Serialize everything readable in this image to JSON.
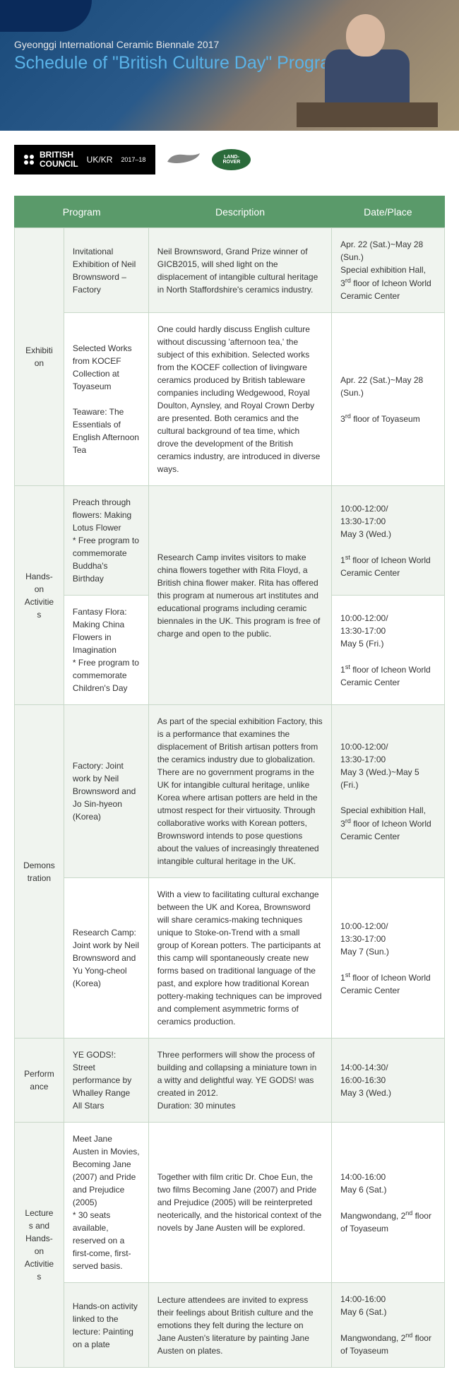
{
  "hero": {
    "subtitle": "Gyeonggi International Ceramic Biennale 2017",
    "title": "Schedule of \"British Culture Day\" Programs"
  },
  "logos": {
    "british_council": "BRITISH COUNCIL",
    "ukkr": "UK/KR",
    "year": "2017–18",
    "jaguar": "JAGUAR",
    "landrover": "LAND-ROVER"
  },
  "table": {
    "headers": {
      "program": "Program",
      "description": "Description",
      "date": "Date/Place"
    },
    "colors": {
      "header_bg": "#5a9a6a",
      "header_fg": "#ffffff",
      "border": "#c8d8c8",
      "stripe": "#f0f4ef"
    },
    "categories": [
      {
        "name": "Exhibition",
        "rows": [
          {
            "program": "Invitational Exhibition of Neil Brownsword – Factory",
            "description": "Neil Brownsword, Grand Prize winner of GICB2015, will shed light on the displacement of intangible cultural heritage in North Staffordshire's ceramics industry.",
            "date_html": "Apr. 22 (Sat.)~May 28 (Sun.)<br>Special exhibition Hall, 3<span class=\"ord\">rd</span> floor of Icheon World Ceramic Center"
          },
          {
            "program": "Selected Works from KOCEF Collection at Toyaseum<br><br>Teaware: The Essentials of English Afternoon Tea",
            "description": "One could hardly discuss English culture without discussing 'afternoon tea,' the subject of this exhibition. Selected works from the KOCEF collection of livingware ceramics produced by British tableware companies including Wedgewood, Royal Doulton, Aynsley, and Royal Crown Derby are presented.  Both ceramics and the cultural background of tea time, which drove the development of the British ceramics industry, are introduced in diverse ways.",
            "date_html": "Apr. 22 (Sat.)~May 28 (Sun.)<br><br>3<span class=\"ord\">rd</span> floor of Toyaseum"
          }
        ]
      },
      {
        "name": "Hands-on Activities",
        "shared_description": "Research Camp invites visitors to make china flowers together with Rita Floyd, a British china flower maker.  Rita has offered this program at numerous art institutes and educational programs including ceramic biennales in the UK.  This program is free of charge and open to the public.",
        "rows": [
          {
            "program": "Preach through flowers: Making Lotus Flower<br>* Free program to commemorate Buddha's Birthday",
            "date_html": "10:00-12:00/<br>13:30-17:00<br>May 3 (Wed.)<br><br>1<span class=\"ord\">st</span> floor of Icheon World Ceramic Center"
          },
          {
            "program": "Fantasy Flora: Making China Flowers in Imagination<br>* Free program to commemorate Children's Day",
            "date_html": "10:00-12:00/<br>13:30-17:00<br>May 5 (Fri.)<br><br>1<span class=\"ord\">st</span> floor of Icheon World Ceramic Center"
          }
        ]
      },
      {
        "name": "Demonstration",
        "rows": [
          {
            "program": "Factory: Joint work by Neil Brownsword and Jo Sin-hyeon (Korea)",
            "description": "As part of the special exhibition Factory, this is a performance that examines the displacement of British artisan potters from the ceramics industry due to globalization.  There are no government programs in the UK for intangible cultural heritage, unlike Korea where artisan potters are held in the utmost respect for their virtuosity.  Through collaborative works with Korean potters, Brownsword intends to pose questions about the values of increasingly threatened intangible cultural heritage in the UK.",
            "date_html": "10:00-12:00/<br>13:30-17:00<br>May 3 (Wed.)~May 5 (Fri.)<br><br>Special exhibition Hall, 3<span class=\"ord\">rd</span> floor of Icheon World Ceramic Center"
          },
          {
            "program": "Research Camp: Joint work by Neil Brownsword and Yu Yong-cheol (Korea)",
            "description": "With a view to facilitating cultural exchange between the UK and Korea, Brownsword will share ceramics-making techniques unique to Stoke-on-Trend with a small group of Korean potters.  The participants at this camp will spontaneously create new forms based on traditional language of the past, and explore how traditional Korean pottery-making techniques can be improved and complement asymmetric forms of ceramics production.",
            "date_html": "10:00-12:00/<br>13:30-17:00<br>May 7 (Sun.)<br><br>1<span class=\"ord\">st</span> floor of Icheon World Ceramic Center"
          }
        ]
      },
      {
        "name": "Performance",
        "rows": [
          {
            "program": "YE GODS!: Street performance by Whalley Range All Stars",
            "description": "Three performers will show the process of building and collapsing a miniature town in a witty and delightful way.  YE GODS! was created in 2012.<br>Duration: 30 minutes",
            "date_html": "14:00-14:30/<br>16:00-16:30<br>May 3 (Wed.)"
          }
        ]
      },
      {
        "name": "Lectures and Hands-on Activities",
        "rows": [
          {
            "program": "Meet Jane Austen in Movies, Becoming Jane (2007) and Pride and Prejudice (2005)<br>* 30 seats available, reserved on a first-come, first-served basis.",
            "description": "Together with film critic Dr. Choe Eun, the two films Becoming Jane (2007) and Pride and Prejudice (2005) will be reinterpreted neoterically, and the historical context of the novels by Jane Austen will be explored.",
            "date_html": "14:00-16:00<br>May 6 (Sat.)<br><br>Mangwondang, 2<span class=\"ord\">nd</span> floor of Toyaseum"
          },
          {
            "program": "Hands-on activity linked to the lecture: Painting on a plate",
            "description": "Lecture attendees are invited to express their feelings about British culture and the emotions they felt during the lecture on Jane Austen's literature by painting Jane Austen on plates.",
            "date_html": "14:00-16:00<br>May 6 (Sat.)<br><br>Mangwondang, 2<span class=\"ord\">nd</span> floor of Toyaseum"
          }
        ]
      }
    ]
  }
}
